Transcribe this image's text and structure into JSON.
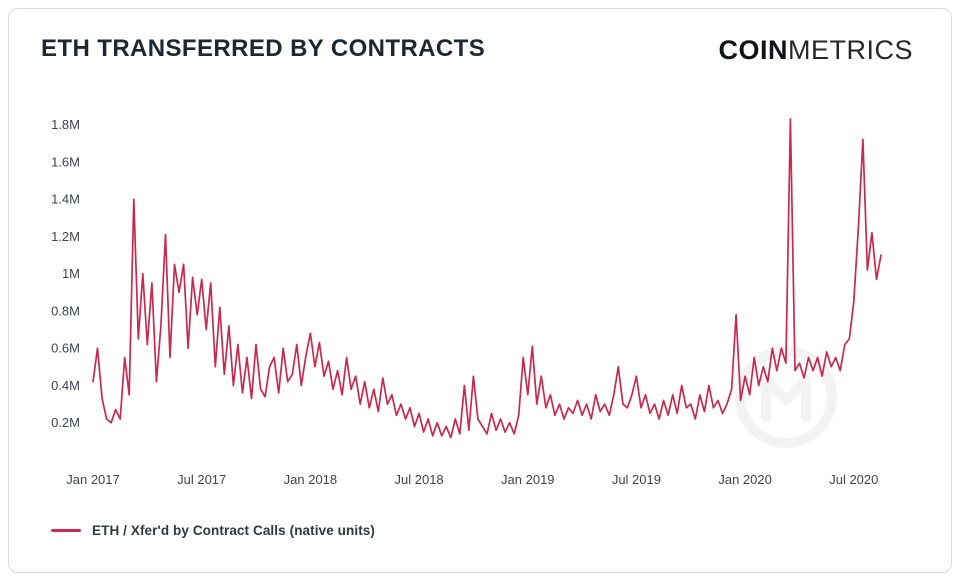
{
  "header": {
    "title": "ETH TRANSFERRED BY CONTRACTS",
    "logo_bold": "COIN",
    "logo_light": "METRICS"
  },
  "legend": {
    "label": "ETH / Xfer'd by Contract Calls (native units)"
  },
  "colors": {
    "line": "#c9294e",
    "title_text": "#1c2733",
    "axis_text": "#3d4450",
    "border": "#d9dadd",
    "watermark": "#1a1a2e"
  },
  "chart_data": {
    "type": "line",
    "title": "ETH TRANSFERRED BY CONTRACTS",
    "xlabel": "",
    "ylabel": "",
    "unit": "million ETH (native units)",
    "ylim": [
      0,
      1.9
    ],
    "grid": false,
    "legend_position": "bottom-left",
    "samples_per_month": 4,
    "yticks": {
      "values": [
        0.2,
        0.4,
        0.6,
        0.8,
        1.0,
        1.2,
        1.4,
        1.6,
        1.8
      ],
      "labels": [
        "0.2M",
        "0.4M",
        "0.6M",
        "0.8M",
        "1M",
        "1.2M",
        "1.4M",
        "1.6M",
        "1.8M"
      ]
    },
    "xticks": {
      "labels": [
        "Jan 2017",
        "Jul 2017",
        "Jan 2018",
        "Jul 2018",
        "Jan 2019",
        "Jul 2019",
        "Jan 2020",
        "Jul 2020"
      ],
      "month_offsets": [
        0,
        6,
        12,
        18,
        24,
        30,
        36,
        42
      ]
    },
    "series": [
      {
        "name": "ETH / Xfer'd by Contract Calls (native units)",
        "sampling": "approx. weekly samples, 4 per month, Jan 2017 - early Aug 2020",
        "months": [
          {
            "m": "2017-01",
            "v": [
              0.42,
              0.6,
              0.33,
              0.22
            ]
          },
          {
            "m": "2017-02",
            "v": [
              0.2,
              0.27,
              0.22,
              0.55
            ]
          },
          {
            "m": "2017-03",
            "v": [
              0.35,
              1.4,
              0.65,
              1.0
            ]
          },
          {
            "m": "2017-04",
            "v": [
              0.62,
              0.95,
              0.42,
              0.72
            ]
          },
          {
            "m": "2017-05",
            "v": [
              1.21,
              0.55,
              1.05,
              0.9
            ]
          },
          {
            "m": "2017-06",
            "v": [
              1.05,
              0.6,
              0.98,
              0.78
            ]
          },
          {
            "m": "2017-07",
            "v": [
              0.97,
              0.7,
              0.95,
              0.5
            ]
          },
          {
            "m": "2017-08",
            "v": [
              0.82,
              0.46,
              0.72,
              0.4
            ]
          },
          {
            "m": "2017-09",
            "v": [
              0.62,
              0.36,
              0.55,
              0.33
            ]
          },
          {
            "m": "2017-10",
            "v": [
              0.62,
              0.38,
              0.34,
              0.5
            ]
          },
          {
            "m": "2017-11",
            "v": [
              0.55,
              0.36,
              0.6,
              0.42
            ]
          },
          {
            "m": "2017-12",
            "v": [
              0.46,
              0.62,
              0.4,
              0.56
            ]
          },
          {
            "m": "2018-01",
            "v": [
              0.68,
              0.5,
              0.63,
              0.45
            ]
          },
          {
            "m": "2018-02",
            "v": [
              0.53,
              0.38,
              0.48,
              0.35
            ]
          },
          {
            "m": "2018-03",
            "v": [
              0.55,
              0.38,
              0.45,
              0.3
            ]
          },
          {
            "m": "2018-04",
            "v": [
              0.42,
              0.28,
              0.38,
              0.26
            ]
          },
          {
            "m": "2018-05",
            "v": [
              0.44,
              0.3,
              0.35,
              0.24
            ]
          },
          {
            "m": "2018-06",
            "v": [
              0.3,
              0.22,
              0.28,
              0.18
            ]
          },
          {
            "m": "2018-07",
            "v": [
              0.25,
              0.15,
              0.22,
              0.13
            ]
          },
          {
            "m": "2018-08",
            "v": [
              0.2,
              0.13,
              0.18,
              0.12
            ]
          },
          {
            "m": "2018-09",
            "v": [
              0.22,
              0.14,
              0.4,
              0.16
            ]
          },
          {
            "m": "2018-10",
            "v": [
              0.45,
              0.22,
              0.18,
              0.14
            ]
          },
          {
            "m": "2018-11",
            "v": [
              0.25,
              0.16,
              0.22,
              0.15
            ]
          },
          {
            "m": "2018-12",
            "v": [
              0.2,
              0.14,
              0.24,
              0.55
            ]
          },
          {
            "m": "2019-01",
            "v": [
              0.35,
              0.61,
              0.3,
              0.45
            ]
          },
          {
            "m": "2019-02",
            "v": [
              0.28,
              0.35,
              0.24,
              0.3
            ]
          },
          {
            "m": "2019-03",
            "v": [
              0.22,
              0.28,
              0.25,
              0.32
            ]
          },
          {
            "m": "2019-04",
            "v": [
              0.24,
              0.3,
              0.22,
              0.35
            ]
          },
          {
            "m": "2019-05",
            "v": [
              0.26,
              0.3,
              0.24,
              0.35
            ]
          },
          {
            "m": "2019-06",
            "v": [
              0.5,
              0.3,
              0.28,
              0.35
            ]
          },
          {
            "m": "2019-07",
            "v": [
              0.45,
              0.28,
              0.35,
              0.25
            ]
          },
          {
            "m": "2019-08",
            "v": [
              0.3,
              0.22,
              0.32,
              0.24
            ]
          },
          {
            "m": "2019-09",
            "v": [
              0.35,
              0.25,
              0.4,
              0.28
            ]
          },
          {
            "m": "2019-10",
            "v": [
              0.3,
              0.22,
              0.35,
              0.26
            ]
          },
          {
            "m": "2019-11",
            "v": [
              0.4,
              0.28,
              0.32,
              0.25
            ]
          },
          {
            "m": "2019-12",
            "v": [
              0.3,
              0.38,
              0.78,
              0.32
            ]
          },
          {
            "m": "2020-01",
            "v": [
              0.45,
              0.35,
              0.55,
              0.4
            ]
          },
          {
            "m": "2020-02",
            "v": [
              0.5,
              0.42,
              0.6,
              0.48
            ]
          },
          {
            "m": "2020-03",
            "v": [
              0.6,
              0.52,
              1.83,
              0.48
            ]
          },
          {
            "m": "2020-04",
            "v": [
              0.52,
              0.44,
              0.55,
              0.48
            ]
          },
          {
            "m": "2020-05",
            "v": [
              0.55,
              0.45,
              0.58,
              0.5
            ]
          },
          {
            "m": "2020-06",
            "v": [
              0.55,
              0.48,
              0.62,
              0.65
            ]
          },
          {
            "m": "2020-07",
            "v": [
              0.85,
              1.25,
              1.72,
              1.02,
              1.22,
              0.97,
              1.1
            ]
          }
        ]
      }
    ]
  }
}
